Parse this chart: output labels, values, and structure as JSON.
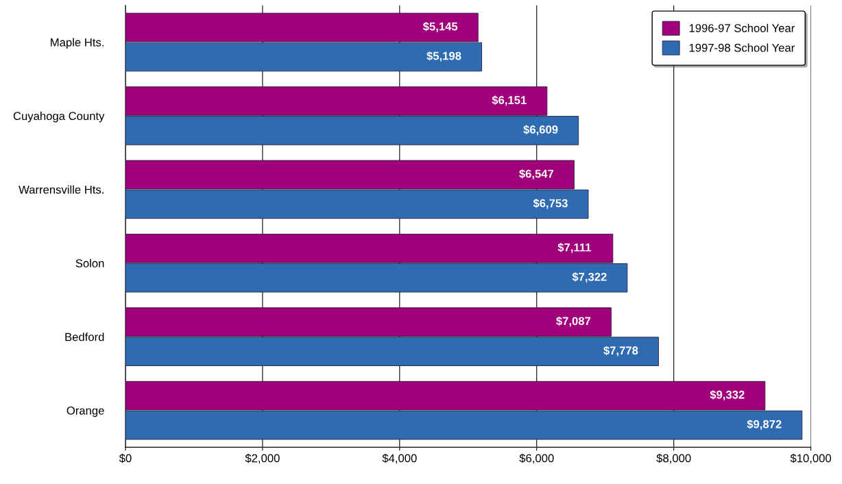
{
  "chart_data": {
    "type": "bar",
    "orientation": "horizontal",
    "categories": [
      "Maple Hts.",
      "Cuyahoga County",
      "Warrensville Hts.",
      "Solon",
      "Bedford",
      "Orange"
    ],
    "series": [
      {
        "name": "1996-97 School Year",
        "color": "#a0007a",
        "values": [
          5145,
          6151,
          6547,
          7111,
          7087,
          9332
        ],
        "value_labels": [
          "$5,145",
          "$6,151",
          "$6,547",
          "$7,111",
          "$7,087",
          "$9,332"
        ]
      },
      {
        "name": "1997-98 School Year",
        "color": "#2e6bb0",
        "values": [
          5198,
          6609,
          6753,
          7322,
          7778,
          9872
        ],
        "value_labels": [
          "$5,198",
          "$6,609",
          "$6,753",
          "$7,322",
          "$7,778",
          "$9,872"
        ]
      }
    ],
    "xlim": [
      0,
      10000
    ],
    "xticks": [
      {
        "value": 0,
        "label": "$0"
      },
      {
        "value": 2000,
        "label": "$2,000"
      },
      {
        "value": 4000,
        "label": "$4,000"
      },
      {
        "value": 6000,
        "label": "$6,000"
      },
      {
        "value": 8000,
        "label": "$8,000"
      },
      {
        "value": 10000,
        "label": "$10,000"
      }
    ],
    "grid": "x",
    "legend": "top right"
  }
}
